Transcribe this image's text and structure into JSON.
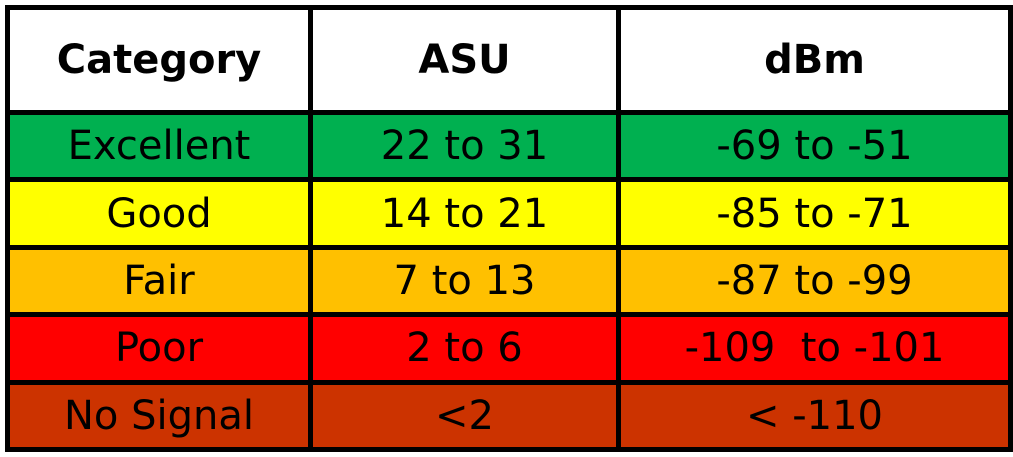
{
  "headers": {
    "category": "Category",
    "asu": "ASU",
    "dbm": "dBm"
  },
  "rows": [
    {
      "category": "Excellent",
      "asu": "22 to 31",
      "dbm": "-69 to -51",
      "color": "#00b050"
    },
    {
      "category": "Good",
      "asu": "14 to 21",
      "dbm": "-85 to -71",
      "color": "#ffff00"
    },
    {
      "category": "Fair",
      "asu": "7 to 13",
      "dbm": "-87 to -99",
      "color": "#ffc000"
    },
    {
      "category": "Poor",
      "asu": "2 to 6",
      "dbm": "-109  to -101",
      "color": "#ff0000"
    },
    {
      "category": "No Signal",
      "asu": "<2",
      "dbm": "< -110",
      "color": "#cc3300"
    }
  ]
}
